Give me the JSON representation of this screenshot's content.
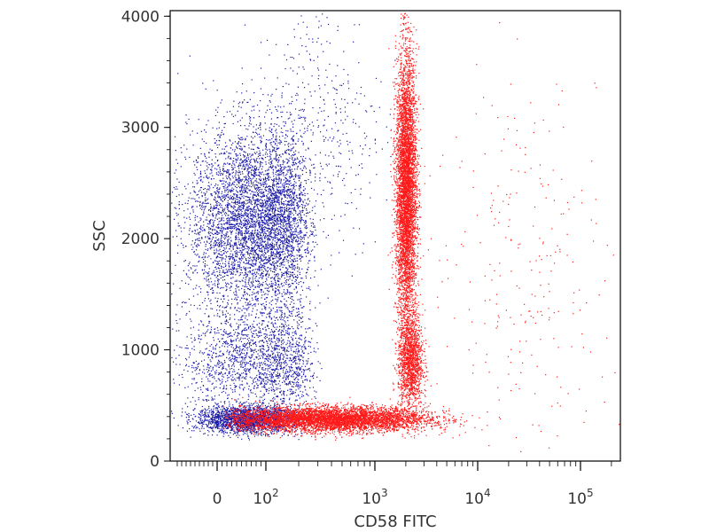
{
  "chart_data": {
    "type": "scatter",
    "xlabel": "CD58 FITC",
    "ylabel": "SSC",
    "x_scale": "biexponential",
    "xlim": [
      -100,
      200000
    ],
    "ylim": [
      0,
      4050
    ],
    "y_ticks": [
      {
        "value": 0,
        "label": "0"
      },
      {
        "value": 1000,
        "label": "1000"
      },
      {
        "value": 2000,
        "label": "2000"
      },
      {
        "value": 3000,
        "label": "3000"
      },
      {
        "value": 4000,
        "label": "4000"
      }
    ],
    "x_ticks": [
      {
        "value": 0,
        "base": "0",
        "exp": ""
      },
      {
        "value": 100,
        "base": "10",
        "exp": "2"
      },
      {
        "value": 1000,
        "base": "10",
        "exp": "3"
      },
      {
        "value": 10000,
        "base": "10",
        "exp": "4"
      },
      {
        "value": 100000,
        "base": "10",
        "exp": "5"
      }
    ],
    "grid": false,
    "series": [
      {
        "color": "#1a1aa6",
        "populations": [
          {
            "x_center": 80,
            "y_center": 2150,
            "x_spread_log": 0.22,
            "y_spread": 420,
            "count": 5200
          },
          {
            "x_center": 90,
            "y_center": 900,
            "x_spread_log": 0.18,
            "y_spread": 230,
            "count": 1800
          },
          {
            "x_center": 60,
            "y_center": 380,
            "x_spread_log": 0.35,
            "y_spread": 60,
            "count": 2200
          },
          {
            "x_center": 300,
            "y_center": 3000,
            "x_spread_log": 0.3,
            "y_spread": 600,
            "count": 450
          }
        ]
      },
      {
        "color": "#ff1a1a",
        "populations": [
          {
            "x_center": 2000,
            "y_center": 2450,
            "x_spread_log": 0.05,
            "y_spread": 600,
            "count": 5200
          },
          {
            "x_center": 2200,
            "y_center": 900,
            "x_spread_log": 0.06,
            "y_spread": 220,
            "count": 1500
          },
          {
            "x_center": 400,
            "y_center": 380,
            "x_spread_log": 0.45,
            "y_spread": 55,
            "count": 6000
          },
          {
            "x_center": 30000,
            "y_center": 1800,
            "x_spread_log": 0.5,
            "y_spread": 900,
            "count": 260
          }
        ]
      }
    ]
  }
}
